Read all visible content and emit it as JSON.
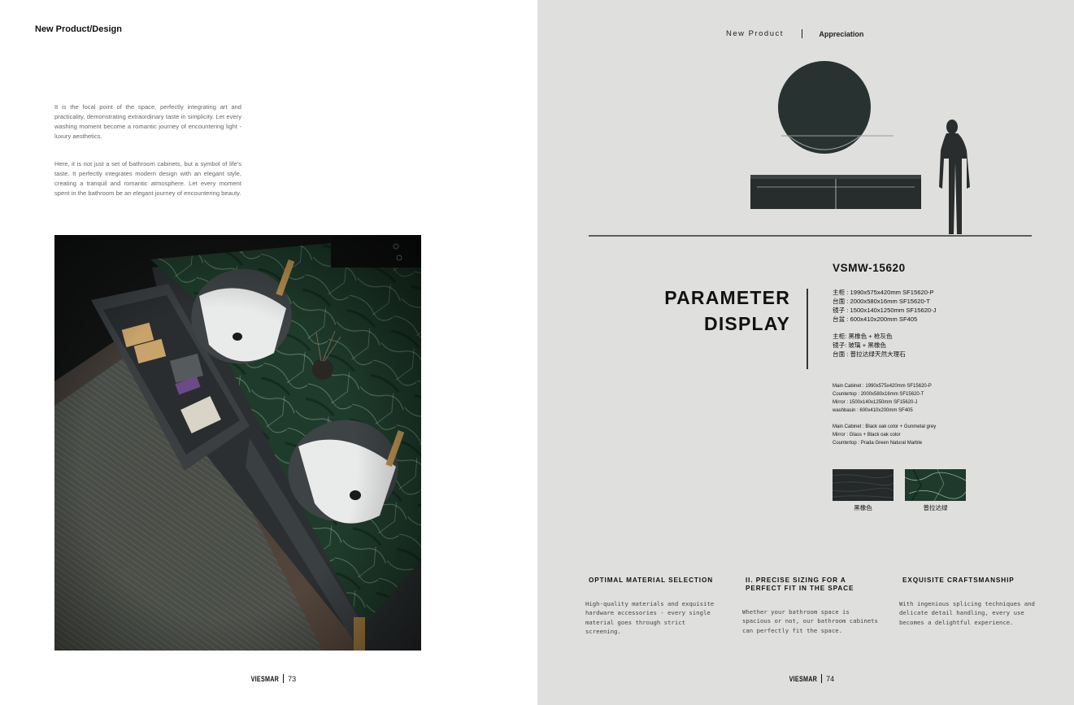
{
  "left_page": {
    "section_title": "New Product/Design",
    "paragraphs": [
      "It is the focal point of the space, perfectly integrating art and practicality, demonstrating extraordinary taste in simplicity. Let every washing moment become a romantic journey of encountering light - luxury aesthetics.",
      "Here, it is not just a set of bathroom cabinets, but a symbol of life's taste. It perfectly integrates modern design with an elegant style, creating a tranquil and romantic atmosphere. Let every moment spent in the bathroom be an elegant journey of encountering beauty."
    ],
    "folio": {
      "brand": "VIESMAR",
      "page": "73"
    }
  },
  "right_page": {
    "header": {
      "left": "New Product",
      "right": "Appreciation"
    },
    "model": "VSMW-15620",
    "title_line1": "PARAMETER",
    "title_line2": "DISPLAY",
    "specs_cn": [
      "主柜 : 1990x575x420mm SF15620-P",
      "台面 : 2000x580x16mm SF15620-T",
      "镜子 : 1500x140x1250mm SF15620-J",
      "台盆 : 600x410x200mm SF405"
    ],
    "materials_cn": [
      "主柜:  黑橡色 + 枪灰色",
      "镜子:  玻璃 + 黑橡色",
      "台面 : 普拉达绿天然大理石"
    ],
    "specs_en": [
      "Main Cabinet : 1990x575x420mm SF15620-P",
      "Countertop : 2000x580x16mm SF15620-T",
      "Mirror : 1500x140x1250mm SF15620-J",
      "washbasin : 600x410x200mm SF405"
    ],
    "materials_en": [
      "Main Cabinet : Black oak color + Gunmetal grey",
      "Mirror : Glass + Black oak color",
      "Countertop : Prada Green Natural Marble"
    ],
    "swatches": [
      {
        "label": "黑橡色",
        "color": "#25292a"
      },
      {
        "label": "普拉达绿",
        "color": "#1f3a2d"
      }
    ],
    "features": [
      {
        "title": "OPTIMAL MATERIAL SELECTION",
        "text": "High-quality materials and exquisite hardware accessories - every single material goes through strict screening."
      },
      {
        "title": "II. PRECISE SIZING FOR A PERFECT FIT IN THE SPACE",
        "text": "Whether your bathroom space is spacious or not, our bathroom cabinets can perfectly fit the space."
      },
      {
        "title": "EXQUISITE CRAFTSMANSHIP",
        "text": "With ingenious splicing techniques and delicate detail handling, every use becomes a delightful experience."
      }
    ],
    "folio": {
      "brand": "VIESMAR",
      "page": "74"
    }
  },
  "colors": {
    "right_page_bg": "#dfe0dd",
    "marble_green": "#1f3a2d",
    "black_oak": "#25292a"
  }
}
